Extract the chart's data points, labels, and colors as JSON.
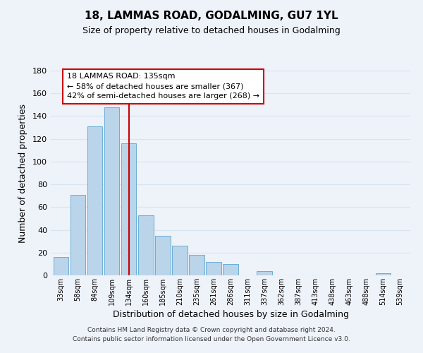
{
  "title": "18, LAMMAS ROAD, GODALMING, GU7 1YL",
  "subtitle": "Size of property relative to detached houses in Godalming",
  "xlabel": "Distribution of detached houses by size in Godalming",
  "ylabel": "Number of detached properties",
  "bar_color": "#bad4ea",
  "bar_edge_color": "#6aaed6",
  "categories": [
    "33sqm",
    "58sqm",
    "84sqm",
    "109sqm",
    "134sqm",
    "160sqm",
    "185sqm",
    "210sqm",
    "235sqm",
    "261sqm",
    "286sqm",
    "311sqm",
    "337sqm",
    "362sqm",
    "387sqm",
    "413sqm",
    "438sqm",
    "463sqm",
    "488sqm",
    "514sqm",
    "539sqm"
  ],
  "values": [
    16,
    71,
    131,
    148,
    116,
    53,
    35,
    26,
    18,
    12,
    10,
    0,
    4,
    0,
    0,
    0,
    0,
    0,
    0,
    2,
    0
  ],
  "ylim": [
    0,
    180
  ],
  "yticks": [
    0,
    20,
    40,
    60,
    80,
    100,
    120,
    140,
    160,
    180
  ],
  "annotation_text_line1": "18 LAMMAS ROAD: 135sqm",
  "annotation_text_line2": "← 58% of detached houses are smaller (367)",
  "annotation_text_line3": "42% of semi-detached houses are larger (268) →",
  "highlight_bar_index": 4,
  "marker_line_color": "#cc0000",
  "footer_line1": "Contains HM Land Registry data © Crown copyright and database right 2024.",
  "footer_line2": "Contains public sector information licensed under the Open Government Licence v3.0.",
  "background_color": "#eef2f9",
  "grid_color": "#d8e4f0",
  "title_fontsize": 11,
  "subtitle_fontsize": 9
}
